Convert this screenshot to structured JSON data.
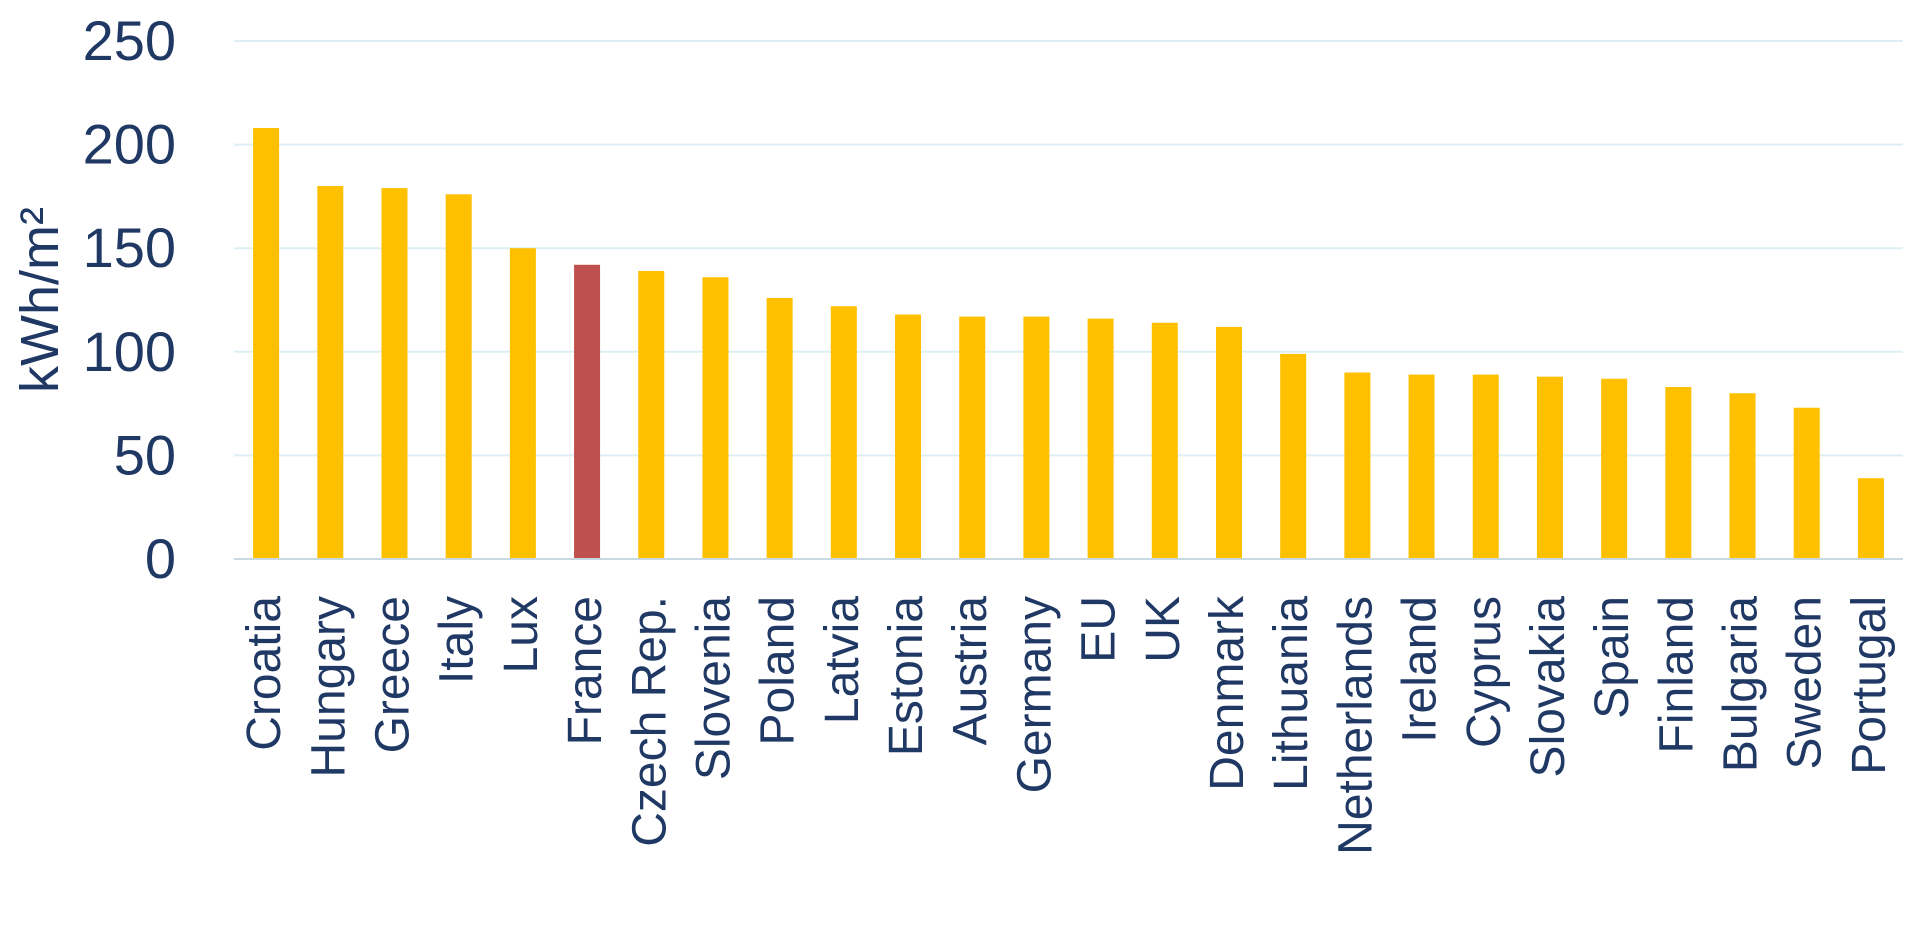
{
  "chart_data": {
    "type": "bar",
    "title": "",
    "xlabel": "",
    "ylabel": "kWh/m²",
    "ylim": [
      0,
      250
    ],
    "yticks": [
      0,
      50,
      100,
      150,
      200,
      250
    ],
    "grid": true,
    "categories": [
      "Croatia",
      "Hungary",
      "Greece",
      "Italy",
      "Lux",
      "France",
      "Czech Rep.",
      "Slovenia",
      "Poland",
      "Latvia",
      "Estonia",
      "Austria",
      "Germany",
      "EU",
      "UK",
      "Denmark",
      "Lithuania",
      "Netherlands",
      "Ireland",
      "Cyprus",
      "Slovakia",
      "Spain",
      "Finland",
      "Bulgaria",
      "Sweden",
      "Portugal"
    ],
    "values": [
      208,
      180,
      179,
      176,
      150,
      142,
      139,
      136,
      126,
      122,
      118,
      117,
      117,
      116,
      114,
      112,
      99,
      90,
      89,
      89,
      88,
      87,
      83,
      80,
      73,
      39
    ],
    "highlight_category": "France",
    "colors": {
      "bar": "#FFC000",
      "highlight": "#C0504D",
      "text": "#1F3864",
      "grid": "#DDEFF5",
      "axis": "#C9D9E4"
    }
  }
}
